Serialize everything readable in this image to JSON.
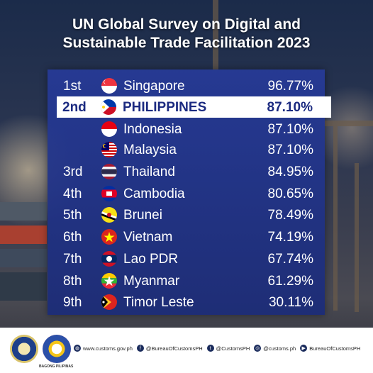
{
  "title": {
    "line1": "UN Global Survey on Digital and",
    "line2": "Sustainable Trade Facilitation 2023"
  },
  "rankings": [
    {
      "rank": "1st",
      "country": "Singapore",
      "score": "96.77%",
      "flag": "singapore-flag"
    },
    {
      "rank": "2nd",
      "country": "PHILIPPINES",
      "score": "87.10%",
      "flag": "philippines-flag"
    },
    {
      "rank": "",
      "country": "Indonesia",
      "score": "87.10%",
      "flag": "indonesia-flag"
    },
    {
      "rank": "",
      "country": "Malaysia",
      "score": "87.10%",
      "flag": "malaysia-flag"
    },
    {
      "rank": "3rd",
      "country": "Thailand",
      "score": "84.95%",
      "flag": "thailand-flag"
    },
    {
      "rank": "4th",
      "country": "Cambodia",
      "score": "80.65%",
      "flag": "cambodia-flag"
    },
    {
      "rank": "5th",
      "country": "Brunei",
      "score": "78.49%",
      "flag": "brunei-flag"
    },
    {
      "rank": "6th",
      "country": "Vietnam",
      "score": "74.19%",
      "flag": "vietnam-flag"
    },
    {
      "rank": "7th",
      "country": "Lao PDR",
      "score": "67.74%",
      "flag": "lao-flag"
    },
    {
      "rank": "8th",
      "country": "Myanmar",
      "score": "61.29%",
      "flag": "myanmar-flag"
    },
    {
      "rank": "9th",
      "country": "Timor Leste",
      "score": "30.11%",
      "flag": "timor-leste-flag"
    }
  ],
  "footer": {
    "seal_caption": "BAGONG PILIPINAS",
    "website": "www.customs.gov.ph",
    "facebook": "@BureauOfCustomsPH",
    "twitter": "@CustomsPH",
    "instagram": "@customs.ph",
    "youtube": "BureauOfCustomsPH"
  },
  "colors": {
    "panel": "#233a96",
    "highlight_text": "#1b2a80",
    "text": "#ffffff"
  }
}
